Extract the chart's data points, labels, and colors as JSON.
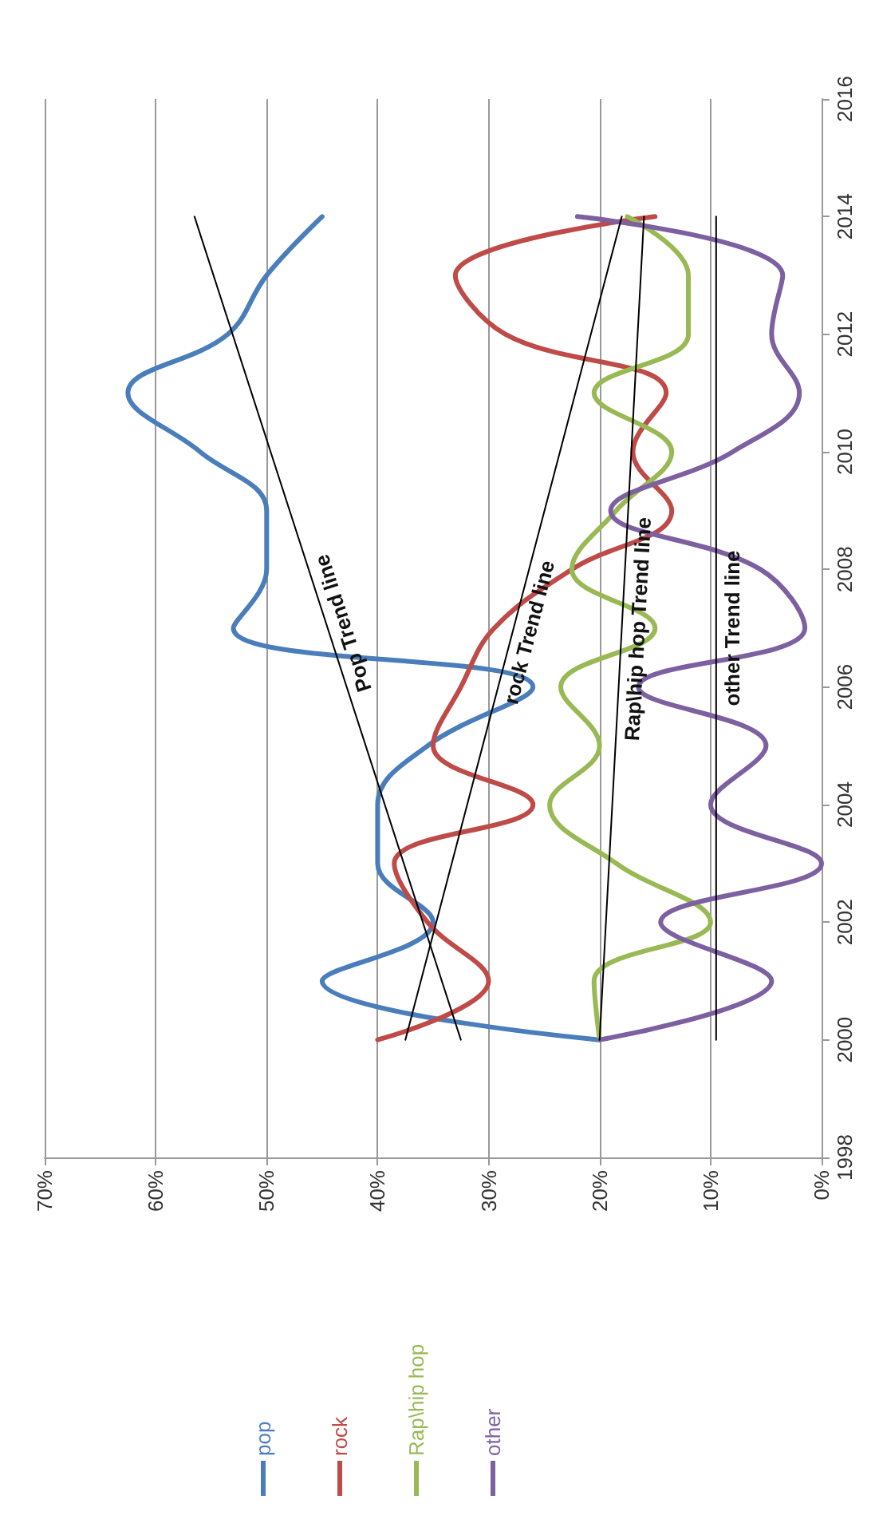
{
  "chart_data": {
    "type": "line",
    "series": [
      {
        "name": "pop",
        "color": "#4a7ebb",
        "x": [
          20,
          45,
          35,
          40,
          40,
          35.5,
          26,
          53,
          50,
          50,
          56,
          62.5,
          53.5,
          50,
          45
        ],
        "values": [
          2000,
          2001,
          2002,
          2003,
          2004,
          2005,
          2006,
          2007,
          2008,
          2009,
          2010,
          2011,
          2012,
          2013,
          2014
        ]
      },
      {
        "name": "rock",
        "color": "#be4b48",
        "x": [
          40,
          30,
          35.5,
          38.5,
          26,
          35,
          32.5,
          29.5,
          22.5,
          13.5,
          17,
          14,
          28.5,
          33,
          15
        ],
        "values": [
          2000,
          2001,
          2002,
          2003,
          2004,
          2005,
          2006,
          2007,
          2008,
          2009,
          2010,
          2011,
          2012,
          2013,
          2014
        ]
      },
      {
        "name": "Rap\\hip hop",
        "color": "#98b954",
        "x": [
          20,
          20.5,
          10,
          18.5,
          24.5,
          20,
          23.5,
          15,
          22.5,
          18.5,
          13.5,
          20.5,
          12,
          12,
          17.5
        ],
        "values": [
          2000,
          2001,
          2002,
          2003,
          2004,
          2005,
          2006,
          2007,
          2008,
          2009,
          2010,
          2011,
          2012,
          2013,
          2014
        ]
      },
      {
        "name": "other",
        "color": "#7d60a0",
        "x": [
          20,
          4.5,
          14.5,
          0,
          10,
          5,
          16.5,
          1.5,
          5.5,
          19,
          8,
          2,
          4.5,
          3.5,
          22
        ],
        "values": [
          2000,
          2001,
          2002,
          2003,
          2004,
          2005,
          2006,
          2007,
          2008,
          2009,
          2010,
          2011,
          2012,
          2013,
          2014
        ]
      },
      {
        "type": "line",
        "name": "Pop Trend line",
        "color": "#000000",
        "x": [
          32.5,
          56.5
        ],
        "values": [
          2000,
          2014
        ]
      },
      {
        "type": "line",
        "name": "rock Trend line",
        "color": "#000000",
        "x": [
          37.5,
          18
        ],
        "values": [
          2000,
          2014
        ]
      },
      {
        "type": "line",
        "name": "Rap\\hip hop Trend line",
        "color": "#000000",
        "x": [
          20,
          16
        ],
        "values": [
          2000,
          2014
        ]
      },
      {
        "type": "line",
        "name": "other Trend line",
        "color": "#000000",
        "x": [
          9.5,
          9.5
        ],
        "values": [
          2000,
          2014
        ]
      }
    ],
    "xlim": [
      70,
      0
    ],
    "xticks": [
      {
        "value": 70,
        "label": "70%"
      },
      {
        "value": 60,
        "label": "60%"
      },
      {
        "value": 50,
        "label": "50%"
      },
      {
        "value": 40,
        "label": "40%"
      },
      {
        "value": 30,
        "label": "30%"
      },
      {
        "value": 20,
        "label": "20%"
      },
      {
        "value": 10,
        "label": "10%"
      },
      {
        "value": 0,
        "label": "0%"
      }
    ],
    "ylim": [
      1998,
      2016
    ],
    "yticks": [
      1998,
      2000,
      2002,
      2004,
      2006,
      2008,
      2010,
      2012,
      2014,
      2016
    ],
    "grid": "x",
    "legend": "bottom",
    "marker": "none",
    "line_style": "solid"
  }
}
